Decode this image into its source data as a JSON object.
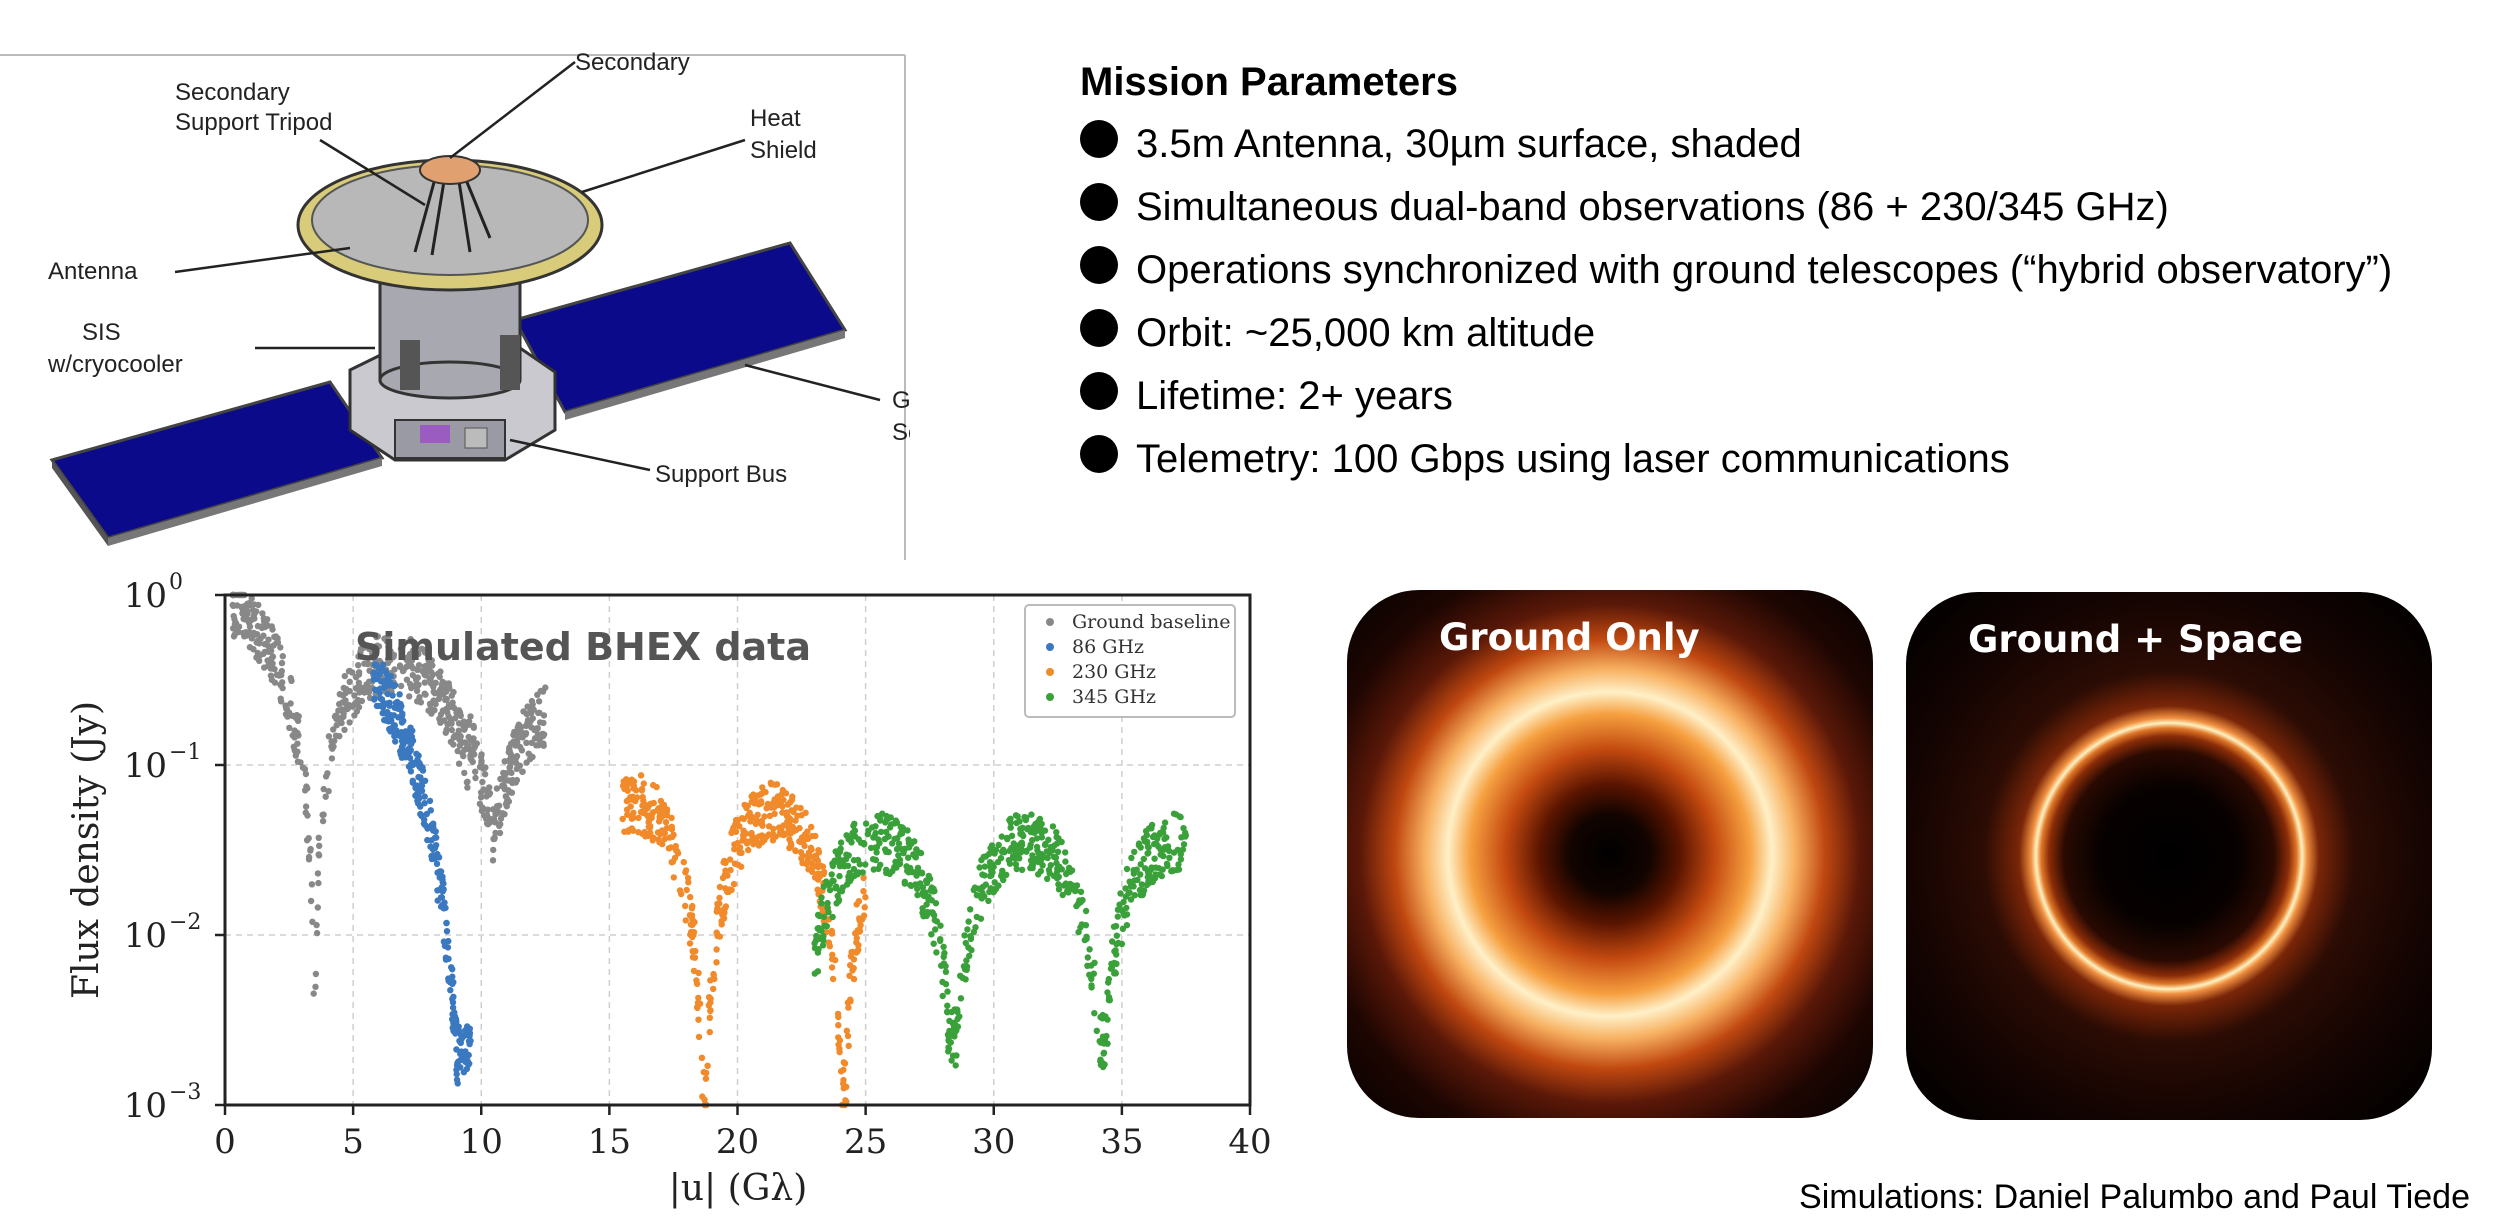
{
  "diagram": {
    "labels": {
      "secondary": "Secondary",
      "tripod_line1": "Secondary",
      "tripod_line2": "Support Tripod",
      "heat_line1": "Heat",
      "heat_line2": "Shield",
      "antenna": "Antenna",
      "sis_line1": "SIS",
      "sis_line2": "w/cryocooler",
      "gimbal_line1": "Gimbaled",
      "gimbal_line2": "Solar Panel",
      "support_bus": "Support Bus"
    },
    "colors": {
      "panel": "#0a0a8a",
      "dish": "#b8b8b8",
      "rim": "#d8cc7a",
      "secondary": "#e0a070"
    }
  },
  "mission": {
    "title": "Mission Parameters",
    "items": [
      "3.5m Antenna, 30µm surface, shaded",
      "Simultaneous dual-band observations (86 + 230/345 GHz)",
      "Operations synchronized with ground telescopes (“hybrid observatory”)",
      "Orbit: ~25,000 km altitude",
      "Lifetime: 2+ years",
      "Telemetry: 100 Gbps using laser communications"
    ]
  },
  "chart_data": {
    "type": "scatter",
    "title": "Simulated BHEX data",
    "xlabel": "|u| (Gλ)",
    "ylabel": "Flux density (Jy)",
    "xlim": [
      0,
      40
    ],
    "ylim": [
      0.001,
      1
    ],
    "yscale": "log",
    "xticks": [
      "0",
      "5",
      "10",
      "15",
      "20",
      "25",
      "30",
      "35",
      "40"
    ],
    "yticks": [
      {
        "base": "10",
        "exp": "0"
      },
      {
        "base": "10",
        "exp": "−1"
      },
      {
        "base": "10",
        "exp": "−2"
      },
      {
        "base": "10",
        "exp": "−3"
      }
    ],
    "legend_position": "top-right",
    "grid": true,
    "series": [
      {
        "name": "Ground baseline",
        "color": "#888888",
        "x_range": [
          0.3,
          12.5
        ],
        "approx_flux_range_jy": [
          0.0015,
          1.0
        ]
      },
      {
        "name": "86 GHz",
        "color": "#3a78c0",
        "x_range": [
          5.8,
          9.6
        ],
        "approx_flux_range_jy": [
          0.0015,
          0.3
        ]
      },
      {
        "name": "230 GHz",
        "color": "#f08a2a",
        "x_range": [
          15.5,
          25.0
        ],
        "approx_flux_range_jy": [
          0.001,
          0.065
        ]
      },
      {
        "name": "345 GHz",
        "color": "#3aa03a",
        "x_range": [
          23.0,
          37.5
        ],
        "approx_flux_range_jy": [
          0.0025,
          0.05
        ]
      }
    ]
  },
  "images": {
    "ground_only_title": "Ground Only",
    "ground_space_title": "Ground + Space",
    "credit": "Simulations: Daniel Palumbo and Paul Tiede"
  }
}
